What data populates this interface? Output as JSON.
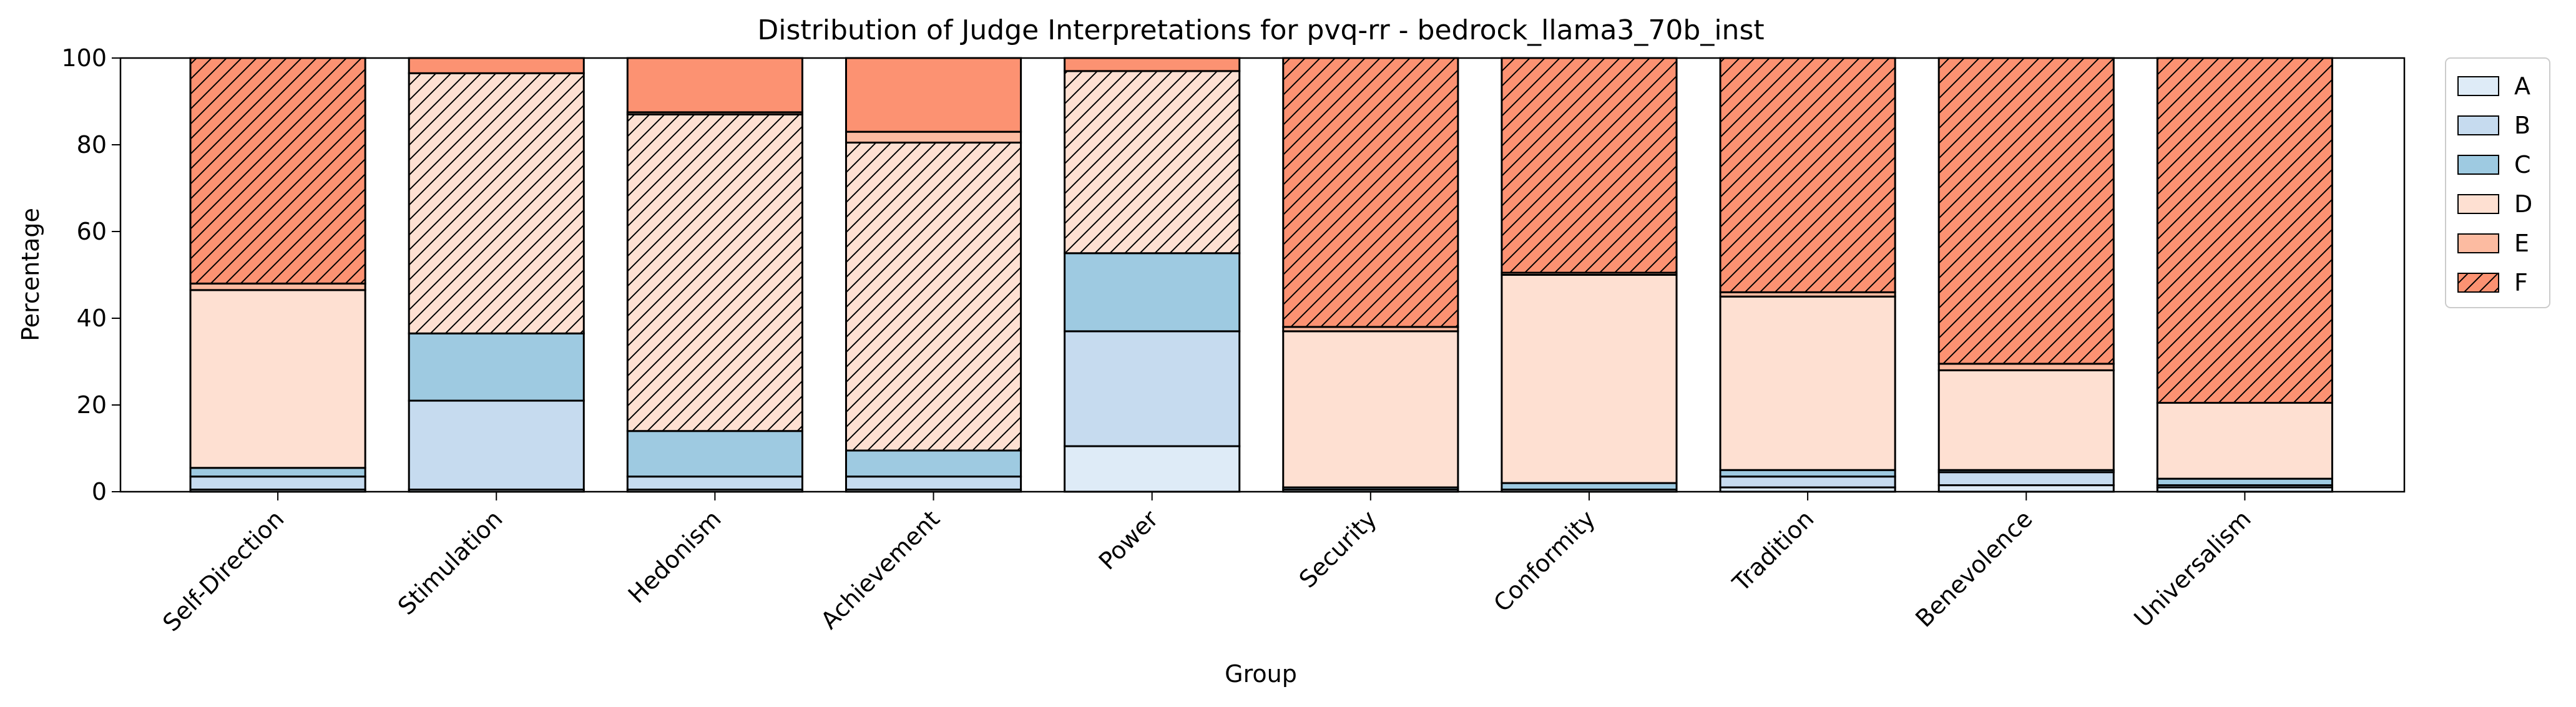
{
  "chart_data": {
    "type": "bar",
    "stacked": true,
    "title": "Distribution of Judge Interpretations for pvq-rr - bedrock_llama3_70b_inst",
    "xlabel": "Group",
    "ylabel": "Percentage",
    "ylim": [
      0,
      100
    ],
    "yticks": [
      "0",
      "20",
      "40",
      "60",
      "80",
      "100"
    ],
    "grid": false,
    "legend_position": "outside-top-right",
    "categories": [
      "Self-Direction",
      "Stimulation",
      "Hedonism",
      "Achievement",
      "Power",
      "Security",
      "Conformity",
      "Tradition",
      "Benevolence",
      "Universalism"
    ],
    "series": [
      {
        "name": "A",
        "color": "#deebf7",
        "hatch": false,
        "values": [
          0.5,
          0.5,
          0.5,
          0.5,
          10.5,
          0.5,
          0.5,
          1.0,
          1.5,
          1.0
        ]
      },
      {
        "name": "B",
        "color": "#c6dbef",
        "hatch": false,
        "values": [
          3.0,
          20.5,
          3.0,
          3.0,
          26.5,
          0.0,
          0.0,
          2.5,
          3.0,
          0.5
        ]
      },
      {
        "name": "C",
        "color": "#9ecae1",
        "hatch": false,
        "values": [
          2.0,
          15.5,
          10.5,
          6.0,
          18.0,
          0.5,
          1.5,
          1.5,
          0.5,
          1.5
        ]
      },
      {
        "name": "D",
        "color": "#fee0d2",
        "hatch": false,
        "values": [
          41.0,
          0.0,
          0.0,
          0.0,
          0.0,
          36.0,
          48.0,
          40.0,
          23.0,
          17.5
        ]
      },
      {
        "name": "E",
        "color": "#fcbba1",
        "hatch": false,
        "values": [
          1.5,
          0.0,
          0.0,
          0.0,
          0.0,
          1.0,
          0.5,
          1.0,
          1.5,
          0.0
        ]
      },
      {
        "name": "F",
        "color": "#fc9272",
        "hatch": true,
        "values": [
          52.0,
          0.0,
          0.0,
          0.0,
          0.0,
          62.0,
          49.5,
          54.0,
          70.5,
          79.5
        ]
      },
      {
        "name": "D",
        "color": "#fee0d2",
        "hatch": true,
        "legend": false,
        "values": [
          0.0,
          60.0,
          73.0,
          71.0,
          42.0,
          0.0,
          0.0,
          0.0,
          0.0,
          0.0
        ]
      },
      {
        "name": "E",
        "color": "#fcbba1",
        "hatch": false,
        "legend": false,
        "values": [
          0.0,
          0.0,
          0.5,
          2.5,
          0.0,
          0.0,
          0.0,
          0.0,
          0.0,
          0.0
        ]
      },
      {
        "name": "F",
        "color": "#fc9272",
        "hatch": false,
        "legend": false,
        "values": [
          0.0,
          3.5,
          12.5,
          17.0,
          3.0,
          0.0,
          0.0,
          0.0,
          0.0,
          0.0
        ]
      }
    ],
    "legend": [
      {
        "label": "A",
        "color": "#deebf7",
        "hatch": false
      },
      {
        "label": "B",
        "color": "#c6dbef",
        "hatch": false
      },
      {
        "label": "C",
        "color": "#9ecae1",
        "hatch": false
      },
      {
        "label": "D",
        "color": "#fee0d2",
        "hatch": false
      },
      {
        "label": "E",
        "color": "#fcbba1",
        "hatch": false
      },
      {
        "label": "F",
        "color": "#fc9272",
        "hatch": true
      }
    ]
  }
}
